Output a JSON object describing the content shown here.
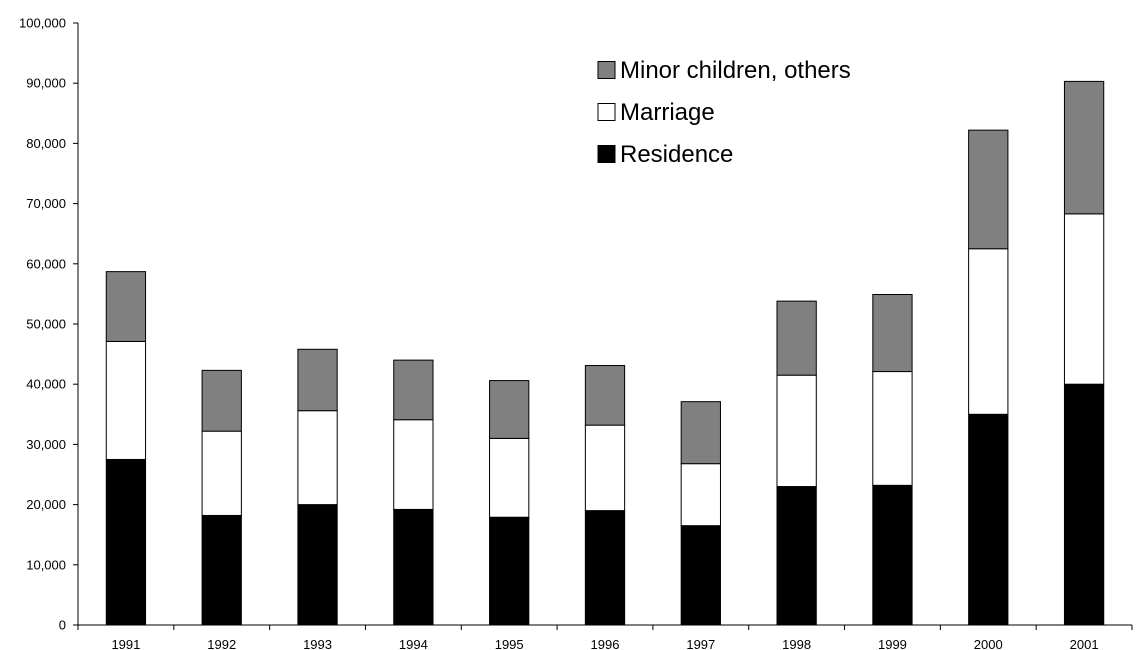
{
  "chart_data": {
    "type": "bar",
    "stacked": true,
    "title": "",
    "xlabel": "",
    "ylabel": "",
    "categories": [
      "1991",
      "1992",
      "1993",
      "1994",
      "1995",
      "1996",
      "1997",
      "1998",
      "1999",
      "2000",
      "2001"
    ],
    "series": [
      {
        "name": "Residence",
        "color": "#000000",
        "values": [
          27500,
          18200,
          20000,
          19200,
          17900,
          19000,
          16500,
          23000,
          23200,
          35000,
          40000
        ]
      },
      {
        "name": "Marriage",
        "color": "#ffffff",
        "values": [
          19600,
          14000,
          15600,
          14900,
          13100,
          14200,
          10300,
          18500,
          18900,
          27500,
          28300
        ]
      },
      {
        "name": "Minor children, others",
        "color": "#808080",
        "values": [
          11600,
          10100,
          10200,
          9900,
          9600,
          9900,
          10300,
          12300,
          12800,
          19700,
          22000
        ]
      }
    ],
    "ylim": [
      0,
      100000
    ],
    "yticks": [
      0,
      10000,
      20000,
      30000,
      40000,
      50000,
      60000,
      70000,
      80000,
      90000,
      100000
    ],
    "ytick_labels": [
      "0",
      "10,000",
      "20,000",
      "30,000",
      "40,000",
      "50,000",
      "60,000",
      "70,000",
      "80,000",
      "90,000",
      "100,000"
    ],
    "grid": false,
    "legend": {
      "position": "top-right",
      "order": [
        "Minor children, others",
        "Marriage",
        "Residence"
      ]
    }
  }
}
